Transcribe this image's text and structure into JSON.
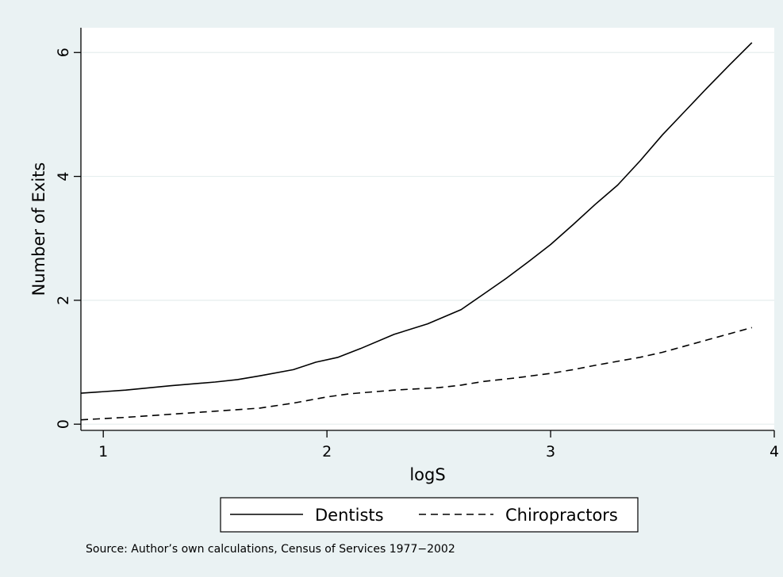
{
  "chart_data": {
    "type": "line",
    "title": "",
    "xlabel": "logS",
    "ylabel": "Number of Exits",
    "xlim": [
      0.9,
      4.0
    ],
    "ylim": [
      -0.1,
      6.4
    ],
    "xticks": [
      1,
      2,
      3,
      4
    ],
    "yticks": [
      0,
      2,
      4,
      6
    ],
    "x_tick_labels": [
      "1",
      "2",
      "3",
      "4"
    ],
    "y_tick_labels": [
      "0",
      "2",
      "4",
      "6"
    ],
    "grid": "horizontal",
    "legend_position": "bottom",
    "series": [
      {
        "name": "Dentists",
        "style": "solid",
        "color": "#000000",
        "points": [
          [
            0.9,
            0.5
          ],
          [
            1.1,
            0.55
          ],
          [
            1.3,
            0.62
          ],
          [
            1.5,
            0.68
          ],
          [
            1.6,
            0.72
          ],
          [
            1.7,
            0.78
          ],
          [
            1.85,
            0.88
          ],
          [
            1.95,
            1.0
          ],
          [
            2.05,
            1.08
          ],
          [
            2.15,
            1.22
          ],
          [
            2.3,
            1.45
          ],
          [
            2.45,
            1.62
          ],
          [
            2.6,
            1.85
          ],
          [
            2.7,
            2.1
          ],
          [
            2.8,
            2.35
          ],
          [
            2.9,
            2.62
          ],
          [
            3.0,
            2.9
          ],
          [
            3.1,
            3.22
          ],
          [
            3.2,
            3.55
          ],
          [
            3.3,
            3.86
          ],
          [
            3.4,
            4.25
          ],
          [
            3.5,
            4.67
          ],
          [
            3.6,
            5.05
          ],
          [
            3.7,
            5.43
          ],
          [
            3.8,
            5.8
          ],
          [
            3.9,
            6.16
          ]
        ]
      },
      {
        "name": "Chiropractors",
        "style": "dashed",
        "color": "#000000",
        "points": [
          [
            0.9,
            0.07
          ],
          [
            1.1,
            0.11
          ],
          [
            1.3,
            0.16
          ],
          [
            1.5,
            0.21
          ],
          [
            1.7,
            0.26
          ],
          [
            1.85,
            0.34
          ],
          [
            2.0,
            0.44
          ],
          [
            2.1,
            0.49
          ],
          [
            2.3,
            0.55
          ],
          [
            2.5,
            0.59
          ],
          [
            2.6,
            0.63
          ],
          [
            2.7,
            0.69
          ],
          [
            2.85,
            0.75
          ],
          [
            3.0,
            0.82
          ],
          [
            3.1,
            0.88
          ],
          [
            3.2,
            0.95
          ],
          [
            3.4,
            1.08
          ],
          [
            3.5,
            1.16
          ],
          [
            3.6,
            1.26
          ],
          [
            3.7,
            1.36
          ],
          [
            3.8,
            1.46
          ],
          [
            3.9,
            1.56
          ]
        ]
      }
    ]
  },
  "legend": {
    "items": [
      {
        "label": "Dentists",
        "style": "solid"
      },
      {
        "label": "Chiropractors",
        "style": "dashed"
      }
    ]
  },
  "note": "Source: Author’s own calculations, Census of Services 1977−2002",
  "colors": {
    "outer_background": "#eaf2f3",
    "plot_background": "#ffffff",
    "gridline": "#e6eeee",
    "ink": "#000000"
  }
}
